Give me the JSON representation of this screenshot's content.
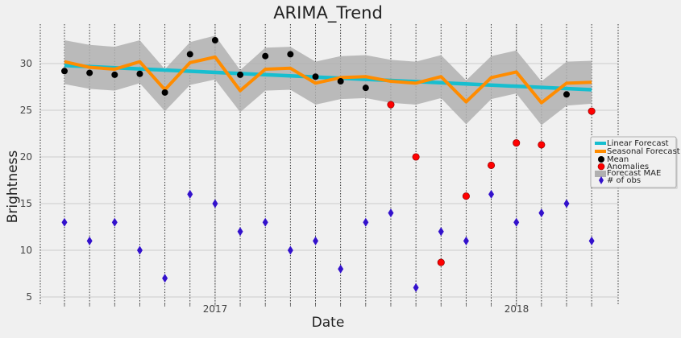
{
  "chart_data": {
    "type": "line",
    "title": "ARIMA_Trend",
    "xlabel": "Date",
    "ylabel": "Brightness",
    "x_tick_labels": [
      "2017",
      "2018"
    ],
    "ylim": [
      4.5,
      34.5
    ],
    "y_ticks": [
      5,
      10,
      15,
      20,
      25,
      30
    ],
    "grid": true,
    "legend_position": "right",
    "legend": {
      "linear_forecast": "Linear Forecast",
      "seasonal_forecast": "Seasonal Forecast",
      "mean": "Mean",
      "anomalies": "Anomalies",
      "forecast_mae": "Forecast MAE",
      "n_obs": "# of obs"
    },
    "period_count": 22,
    "linear_forecast": [
      29.8,
      27.2
    ],
    "seasonal_forecast": [
      30.2,
      29.6,
      29.4,
      30.2,
      27.2,
      30.1,
      30.7,
      27.1,
      29.4,
      29.5,
      27.9,
      28.5,
      28.6,
      28.1,
      27.9,
      28.6,
      25.9,
      28.5,
      29.1,
      25.8,
      27.9,
      28.0
    ],
    "forecast_mae_upper": [
      32.5,
      32.0,
      31.8,
      32.5,
      29.4,
      32.3,
      33.0,
      29.3,
      31.7,
      31.8,
      30.2,
      30.8,
      30.9,
      30.4,
      30.2,
      30.9,
      28.2,
      30.8,
      31.4,
      28.1,
      30.2,
      30.3
    ],
    "forecast_mae_lower": [
      27.8,
      27.3,
      27.1,
      27.9,
      24.9,
      27.7,
      28.3,
      24.8,
      27.1,
      27.2,
      25.6,
      26.2,
      26.3,
      25.8,
      25.6,
      26.3,
      23.5,
      26.2,
      26.8,
      23.4,
      25.5,
      25.7
    ],
    "mean": [
      {
        "i": 0,
        "v": 29.2
      },
      {
        "i": 1,
        "v": 29.0
      },
      {
        "i": 2,
        "v": 28.8
      },
      {
        "i": 3,
        "v": 28.9
      },
      {
        "i": 4,
        "v": 26.9
      },
      {
        "i": 5,
        "v": 31.0
      },
      {
        "i": 6,
        "v": 32.5
      },
      {
        "i": 7,
        "v": 28.8
      },
      {
        "i": 8,
        "v": 30.8
      },
      {
        "i": 9,
        "v": 31.0
      },
      {
        "i": 10,
        "v": 28.6
      },
      {
        "i": 11,
        "v": 28.1
      },
      {
        "i": 12,
        "v": 27.4
      },
      {
        "i": 20,
        "v": 26.7
      }
    ],
    "anomalies": [
      {
        "i": 13,
        "v": 25.6
      },
      {
        "i": 14,
        "v": 20.0
      },
      {
        "i": 15,
        "v": 8.7
      },
      {
        "i": 16,
        "v": 15.8
      },
      {
        "i": 17,
        "v": 19.1
      },
      {
        "i": 18,
        "v": 21.5
      },
      {
        "i": 19,
        "v": 21.3
      },
      {
        "i": 21,
        "v": 24.9
      }
    ],
    "n_obs": [
      13,
      11,
      13,
      10,
      7,
      16,
      15,
      12,
      13,
      10,
      11,
      8,
      13,
      14,
      6,
      12,
      11,
      16,
      13,
      14,
      15,
      11
    ],
    "colors": {
      "background": "#f0f0f0",
      "grid": "#cbcbcb",
      "linear": "#17becf",
      "seasonal": "#ff8c00",
      "mae_band": "#b0b0b0",
      "mean": "#000000",
      "anomaly": "#ff0000",
      "obs": "#3311cc"
    }
  }
}
